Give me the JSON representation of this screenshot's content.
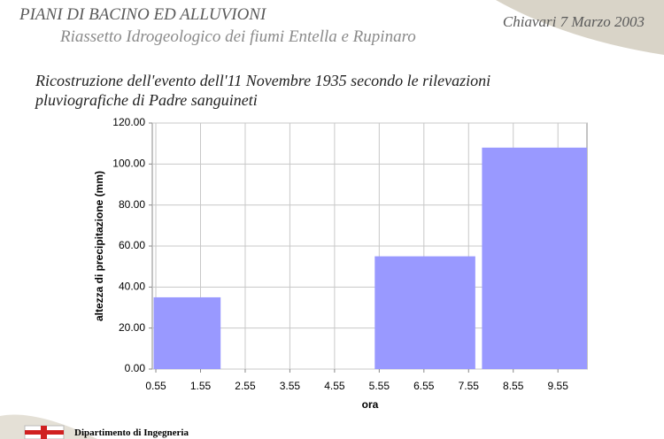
{
  "header": {
    "title": "PIANI DI BACINO ED ALLUVIONI",
    "subtitle": "Riassetto Idrogeologico dei fiumi Entella e Rupinaro",
    "place_date": "Chiavari 7 Marzo 2003"
  },
  "footer": {
    "department": "Dipartimento di Ingegneria"
  },
  "chart_data": {
    "type": "bar",
    "title_lines": [
      "Ricostruzione dell'evento dell'11 Novembre 1935 secondo le rilevazioni",
      "pluviografiche di Padre sanguineti"
    ],
    "x_label": "ora",
    "y_label": "altezza di precipitazione (mm)",
    "x_start": [
      0.5,
      5.45,
      7.85
    ],
    "x_end": [
      2.0,
      7.7,
      10.2
    ],
    "values": [
      35,
      55,
      108
    ],
    "color": "#9999ff",
    "xlim": [
      0.47,
      10.2
    ],
    "xticks": [
      0.55,
      1.55,
      2.55,
      3.55,
      4.55,
      5.55,
      6.55,
      7.55,
      8.55,
      9.55
    ],
    "ylim": [
      0,
      120
    ],
    "yticks": [
      {
        "value": 0,
        "label": "0.00"
      },
      {
        "value": 20,
        "label": "20.00"
      },
      {
        "value": 40,
        "label": "40.00"
      },
      {
        "value": 60,
        "label": "60.00"
      },
      {
        "value": 80,
        "label": "80.00"
      },
      {
        "value": 100,
        "label": "100.00"
      },
      {
        "value": 120,
        "label": "120.00"
      }
    ],
    "grid": true
  }
}
